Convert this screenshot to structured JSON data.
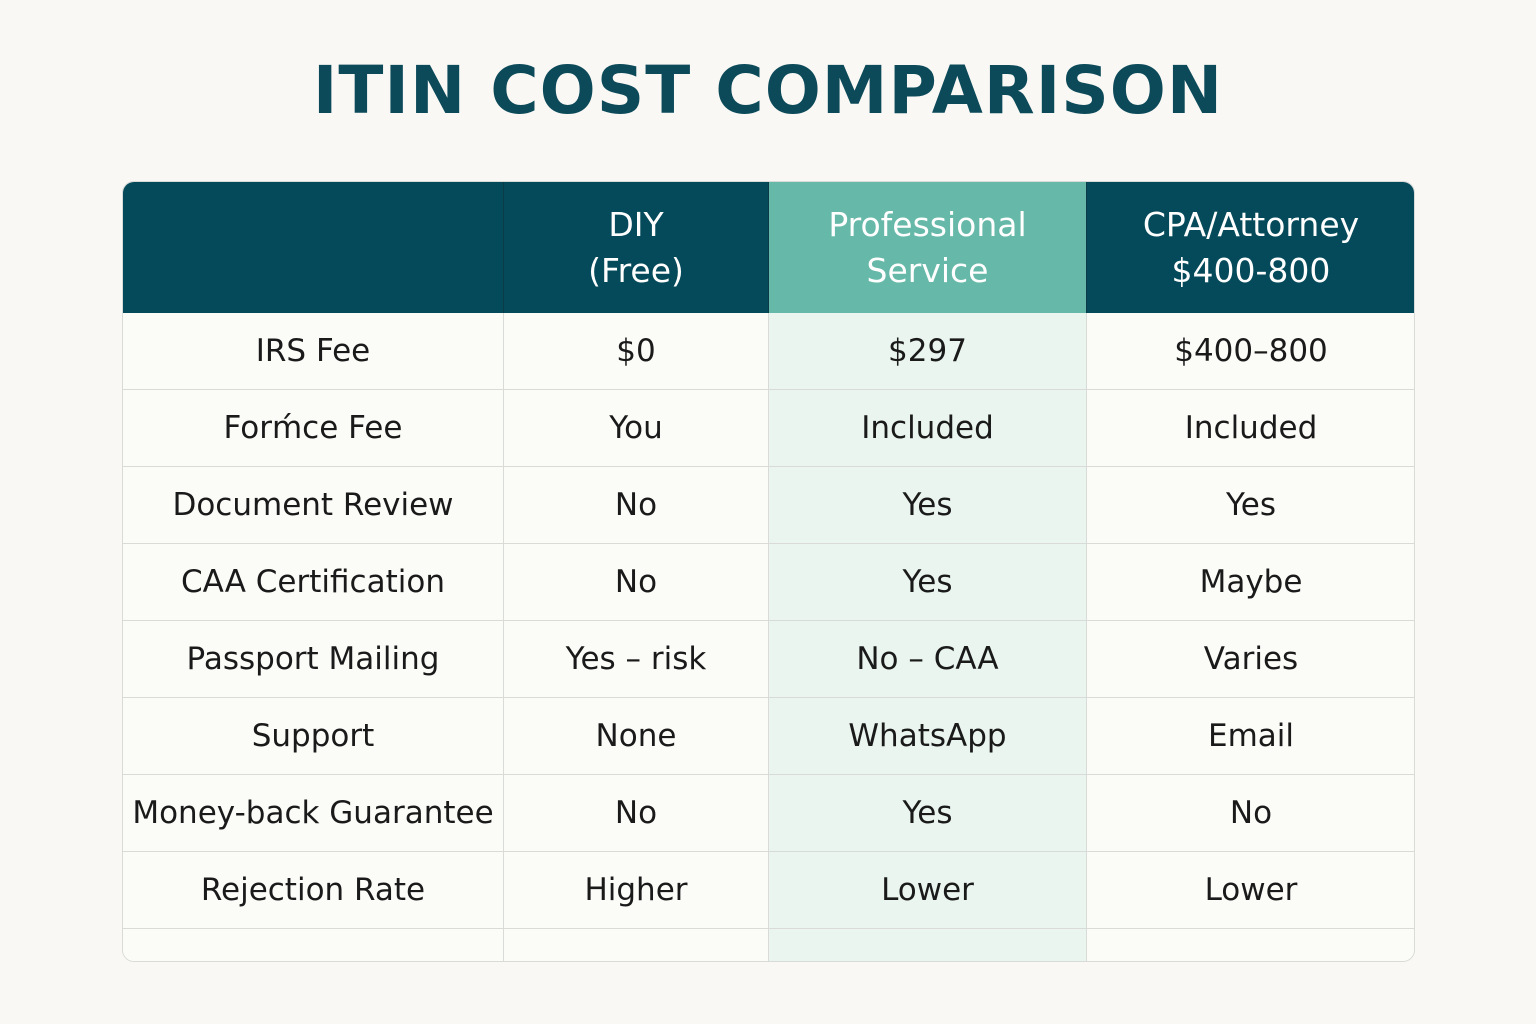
{
  "title": "ITIN COST COMPARISON",
  "table": {
    "header": [
      [
        "DIY",
        "(Free)"
      ],
      [
        "Professional",
        "Service"
      ],
      [
        "CPA/Attorney",
        "$400-800"
      ]
    ],
    "rows": [
      [
        "IRS Fee",
        "$0",
        "$297",
        "$400–800"
      ],
      [
        "Forḿce Fee",
        "You",
        "Included",
        "Included"
      ],
      [
        "Document Review",
        "No",
        "Yes",
        "Yes"
      ],
      [
        "CAA Certification",
        "No",
        "Yes",
        "Maybe"
      ],
      [
        "Passport Mailing",
        "Yes – risk",
        "No – CAA",
        "Varies"
      ],
      [
        "Support",
        "None",
        "WhatsApp",
        "Email"
      ],
      [
        "Money-back Guarantee",
        "No",
        "Yes",
        "No"
      ],
      [
        "Rejection Rate",
        "Higher",
        "Lower",
        "Lower"
      ]
    ]
  }
}
